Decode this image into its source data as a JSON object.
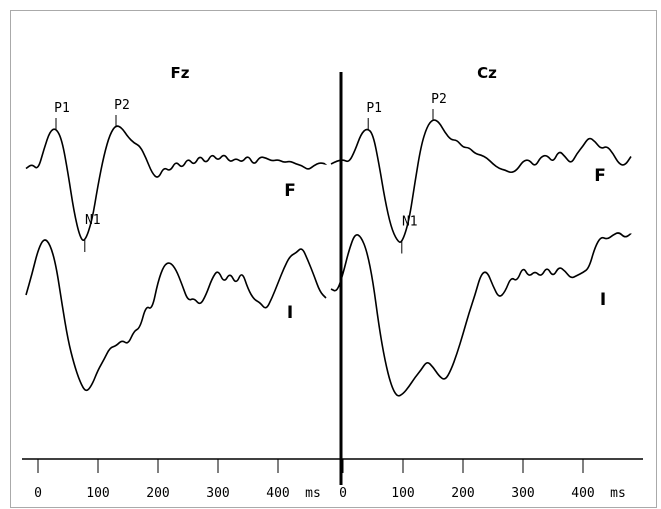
{
  "chart_data": {
    "type": "line",
    "panels": [
      {
        "title": "Fz",
        "x_ticks": [
          0,
          100,
          200,
          300,
          400
        ],
        "x_unit": "ms",
        "xlim": [
          -20,
          480
        ],
        "series": [
          {
            "name": "F",
            "points": [
              [
                -20,
                0.3
              ],
              [
                -10,
                0.6
              ],
              [
                0,
                0.2
              ],
              [
                10,
                1.6
              ],
              [
                20,
                2.8
              ],
              [
                30,
                3.0
              ],
              [
                40,
                2.2
              ],
              [
                50,
                0.0
              ],
              [
                60,
                -2.6
              ],
              [
                70,
                -4.3
              ],
              [
                78,
                -4.6
              ],
              [
                90,
                -3.2
              ],
              [
                100,
                -0.8
              ],
              [
                110,
                1.2
              ],
              [
                120,
                2.6
              ],
              [
                130,
                3.2
              ],
              [
                140,
                3.0
              ],
              [
                150,
                2.4
              ],
              [
                160,
                2.0
              ],
              [
                170,
                1.8
              ],
              [
                180,
                1.0
              ],
              [
                190,
                0.0
              ],
              [
                200,
                -0.4
              ],
              [
                210,
                0.4
              ],
              [
                220,
                0.1
              ],
              [
                230,
                0.8
              ],
              [
                240,
                0.3
              ],
              [
                250,
                1.0
              ],
              [
                260,
                0.5
              ],
              [
                270,
                1.2
              ],
              [
                280,
                0.6
              ],
              [
                290,
                1.3
              ],
              [
                300,
                0.8
              ],
              [
                310,
                1.3
              ],
              [
                320,
                0.7
              ],
              [
                330,
                1.0
              ],
              [
                340,
                0.7
              ],
              [
                350,
                1.2
              ],
              [
                360,
                0.5
              ],
              [
                370,
                1.1
              ],
              [
                380,
                1.0
              ],
              [
                390,
                0.8
              ],
              [
                400,
                0.9
              ],
              [
                410,
                0.7
              ],
              [
                420,
                0.8
              ],
              [
                430,
                0.6
              ],
              [
                440,
                0.5
              ],
              [
                450,
                0.2
              ],
              [
                460,
                0.5
              ],
              [
                470,
                0.7
              ],
              [
                480,
                0.6
              ]
            ]
          },
          {
            "name": "I",
            "points": [
              [
                -20,
                -0.6
              ],
              [
                -10,
                0.8
              ],
              [
                0,
                2.4
              ],
              [
                10,
                3.2
              ],
              [
                20,
                2.8
              ],
              [
                30,
                1.4
              ],
              [
                40,
                -1.2
              ],
              [
                50,
                -3.6
              ],
              [
                60,
                -5.2
              ],
              [
                70,
                -6.4
              ],
              [
                80,
                -7.1
              ],
              [
                90,
                -6.6
              ],
              [
                100,
                -5.6
              ],
              [
                110,
                -4.9
              ],
              [
                120,
                -4.1
              ],
              [
                130,
                -4.0
              ],
              [
                140,
                -3.6
              ],
              [
                150,
                -3.9
              ],
              [
                160,
                -3.0
              ],
              [
                170,
                -2.8
              ],
              [
                180,
                -1.3
              ],
              [
                190,
                -1.6
              ],
              [
                200,
                0.3
              ],
              [
                210,
                1.4
              ],
              [
                220,
                1.6
              ],
              [
                230,
                1.1
              ],
              [
                240,
                0.1
              ],
              [
                250,
                -1.0
              ],
              [
                260,
                -0.8
              ],
              [
                270,
                -1.3
              ],
              [
                280,
                -0.6
              ],
              [
                290,
                0.5
              ],
              [
                300,
                1.1
              ],
              [
                310,
                0.2
              ],
              [
                320,
                0.9
              ],
              [
                330,
                0.1
              ],
              [
                340,
                1.0
              ],
              [
                350,
                -0.2
              ],
              [
                360,
                -0.9
              ],
              [
                370,
                -1.1
              ],
              [
                380,
                -1.6
              ],
              [
                390,
                -0.8
              ],
              [
                400,
                0.2
              ],
              [
                410,
                1.2
              ],
              [
                420,
                2.0
              ],
              [
                430,
                2.2
              ],
              [
                440,
                2.6
              ],
              [
                450,
                1.7
              ],
              [
                460,
                0.7
              ],
              [
                470,
                -0.4
              ],
              [
                480,
                -0.8
              ]
            ]
          }
        ],
        "peak_labels": [
          {
            "label": "P1",
            "x": 30
          },
          {
            "label": "N1",
            "x": 78
          },
          {
            "label": "P2",
            "x": 130
          }
        ]
      },
      {
        "title": "Cz",
        "x_ticks": [
          0,
          100,
          200,
          300,
          400
        ],
        "x_unit": "ms",
        "xlim": [
          -20,
          480
        ],
        "series": [
          {
            "name": "F",
            "points": [
              [
                -20,
                0.6
              ],
              [
                -10,
                0.8
              ],
              [
                0,
                0.9
              ],
              [
                10,
                0.7
              ],
              [
                20,
                1.5
              ],
              [
                30,
                2.6
              ],
              [
                40,
                3.0
              ],
              [
                50,
                2.6
              ],
              [
                60,
                0.6
              ],
              [
                70,
                -1.8
              ],
              [
                80,
                -3.6
              ],
              [
                90,
                -4.5
              ],
              [
                98,
                -4.7
              ],
              [
                110,
                -3.2
              ],
              [
                120,
                -0.6
              ],
              [
                130,
                1.8
              ],
              [
                140,
                3.1
              ],
              [
                150,
                3.6
              ],
              [
                160,
                3.4
              ],
              [
                170,
                2.7
              ],
              [
                180,
                2.2
              ],
              [
                190,
                2.2
              ],
              [
                200,
                1.7
              ],
              [
                210,
                1.7
              ],
              [
                220,
                1.3
              ],
              [
                230,
                1.2
              ],
              [
                240,
                1.0
              ],
              [
                250,
                0.6
              ],
              [
                260,
                0.3
              ],
              [
                270,
                0.2
              ],
              [
                280,
                0.0
              ],
              [
                290,
                0.2
              ],
              [
                300,
                0.8
              ],
              [
                310,
                0.9
              ],
              [
                320,
                0.4
              ],
              [
                330,
                1.1
              ],
              [
                340,
                1.2
              ],
              [
                350,
                0.7
              ],
              [
                360,
                1.5
              ],
              [
                370,
                1.1
              ],
              [
                380,
                0.6
              ],
              [
                390,
                1.3
              ],
              [
                400,
                1.8
              ],
              [
                410,
                2.4
              ],
              [
                420,
                2.1
              ],
              [
                430,
                1.6
              ],
              [
                440,
                1.8
              ],
              [
                450,
                1.3
              ],
              [
                460,
                0.6
              ],
              [
                470,
                0.5
              ],
              [
                480,
                1.1
              ]
            ]
          },
          {
            "name": "I",
            "points": [
              [
                -20,
                -0.2
              ],
              [
                -10,
                -0.4
              ],
              [
                0,
                0.8
              ],
              [
                10,
                2.4
              ],
              [
                20,
                3.5
              ],
              [
                30,
                3.3
              ],
              [
                40,
                2.3
              ],
              [
                50,
                0.3
              ],
              [
                60,
                -2.7
              ],
              [
                70,
                -5.0
              ],
              [
                80,
                -6.6
              ],
              [
                90,
                -7.4
              ],
              [
                100,
                -7.2
              ],
              [
                110,
                -6.7
              ],
              [
                120,
                -6.1
              ],
              [
                130,
                -5.6
              ],
              [
                140,
                -5.0
              ],
              [
                150,
                -5.4
              ],
              [
                160,
                -6.0
              ],
              [
                170,
                -6.3
              ],
              [
                180,
                -5.6
              ],
              [
                190,
                -4.5
              ],
              [
                200,
                -3.2
              ],
              [
                210,
                -1.8
              ],
              [
                220,
                -0.6
              ],
              [
                230,
                0.8
              ],
              [
                240,
                1.0
              ],
              [
                250,
                0.0
              ],
              [
                260,
                -0.8
              ],
              [
                270,
                -0.4
              ],
              [
                280,
                0.6
              ],
              [
                290,
                0.3
              ],
              [
                300,
                1.3
              ],
              [
                310,
                0.6
              ],
              [
                320,
                1.0
              ],
              [
                330,
                0.6
              ],
              [
                340,
                1.3
              ],
              [
                350,
                0.6
              ],
              [
                360,
                1.3
              ],
              [
                370,
                1.0
              ],
              [
                380,
                0.5
              ],
              [
                390,
                0.7
              ],
              [
                400,
                0.9
              ],
              [
                410,
                1.2
              ],
              [
                420,
                2.6
              ],
              [
                430,
                3.3
              ],
              [
                440,
                3.1
              ],
              [
                450,
                3.4
              ],
              [
                460,
                3.6
              ],
              [
                470,
                3.2
              ],
              [
                480,
                3.5
              ]
            ]
          }
        ],
        "peak_labels": [
          {
            "label": "P1",
            "x": 42
          },
          {
            "label": "N1",
            "x": 98
          },
          {
            "label": "P2",
            "x": 150
          }
        ]
      }
    ],
    "xlabel": "",
    "ylabel": "",
    "ylim": [
      -8,
      4
    ],
    "grid": false,
    "legend": "none"
  }
}
